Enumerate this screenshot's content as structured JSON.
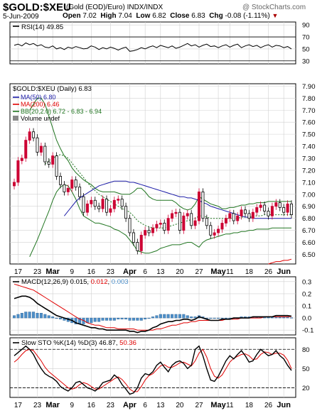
{
  "header": {
    "symbol": "$GOLD:$XEU",
    "description": "(Gold (EOD)/Euro) INDX/INDX",
    "watermark": "@ StockCharts.com",
    "date": "5-Jun-2009",
    "open_label": "Open",
    "open": "7.02",
    "high_label": "High",
    "high": "7.04",
    "low_label": "Low",
    "low": "6.82",
    "close_label": "Close",
    "close": "6.83",
    "chg_label": "Chg",
    "chg": "-0.08 (-1.11%)",
    "chg_arrow": "▼"
  },
  "colors": {
    "up": "#cc0033",
    "down": "#000000",
    "ma50": "#1a1aa6",
    "ma200": "#e00000",
    "bb": "#207520",
    "hist": "#4d8fc9",
    "grid": "#d0d0d0"
  },
  "x_axis_labels": [
    {
      "i": 1,
      "t": "17"
    },
    {
      "i": 6,
      "t": "23"
    },
    {
      "i": 10,
      "t": "Mar"
    },
    {
      "i": 15,
      "t": "9"
    },
    {
      "i": 20,
      "t": "16"
    },
    {
      "i": 25,
      "t": "23"
    },
    {
      "i": 30,
      "t": "Apr"
    },
    {
      "i": 34,
      "t": "6"
    },
    {
      "i": 38,
      "t": "13"
    },
    {
      "i": 43,
      "t": "20"
    },
    {
      "i": 48,
      "t": "27"
    },
    {
      "i": 53,
      "t": "May"
    },
    {
      "i": 56,
      "t": "11"
    },
    {
      "i": 61,
      "t": "18"
    },
    {
      "i": 66,
      "t": "26"
    },
    {
      "i": 70,
      "t": "Jun"
    }
  ],
  "chart_data": [
    {
      "type": "line",
      "panel": "RSI",
      "label": "RSI(14) 49.85",
      "y_ticks": [
        30,
        50,
        70,
        90
      ],
      "ylim": [
        25,
        95
      ],
      "reference_lines": [
        30,
        70
      ],
      "values": [
        56,
        58,
        55,
        60,
        57,
        59,
        55,
        57,
        53,
        52,
        55,
        50,
        52,
        49,
        53,
        51,
        54,
        52,
        50,
        51,
        55,
        53,
        49,
        52,
        50,
        53,
        51,
        48,
        51,
        53,
        46,
        47,
        49,
        52,
        50,
        53,
        55,
        52,
        56,
        54,
        52,
        55,
        51,
        53,
        56,
        59,
        55,
        57,
        53,
        56,
        58,
        54,
        55,
        52,
        55,
        57,
        53,
        56,
        58,
        52,
        55,
        57,
        54,
        56,
        52,
        55,
        57,
        53,
        56,
        55,
        52,
        54,
        50
      ]
    },
    {
      "type": "candlestick",
      "panel": "Price",
      "label": "$GOLD:$XEU (Daily) 6.83",
      "y_ticks": [
        6.5,
        6.6,
        6.7,
        6.8,
        6.9,
        7.0,
        7.1,
        7.2,
        7.3,
        7.4,
        7.5,
        7.6,
        7.7,
        7.8,
        7.9
      ],
      "ylim": [
        6.42,
        7.92
      ],
      "legend": [
        "MA(50) 6.80",
        "MA(200) 6.46",
        "BB(20,2.0) 6.72 - 6.83 - 6.94",
        "Volume undef"
      ],
      "close": [
        7.1,
        7.28,
        7.3,
        7.45,
        7.52,
        7.47,
        7.35,
        7.4,
        7.27,
        7.25,
        7.32,
        7.15,
        7.08,
        7.02,
        7.05,
        7.12,
        7.06,
        6.98,
        6.85,
        6.92,
        6.95,
        6.9,
        6.88,
        6.96,
        6.85,
        6.88,
        6.95,
        6.96,
        6.9,
        6.8,
        6.68,
        6.6,
        6.53,
        6.66,
        6.7,
        6.68,
        6.72,
        6.75,
        6.76,
        6.7,
        6.8,
        6.84,
        6.85,
        6.7,
        6.82,
        6.84,
        6.74,
        6.78,
        7.02,
        6.8,
        6.74,
        6.66,
        6.68,
        6.71,
        6.76,
        6.8,
        6.84,
        6.78,
        6.82,
        6.87,
        6.84,
        6.8,
        6.85,
        6.89,
        6.91,
        6.86,
        6.82,
        6.9,
        6.93,
        6.89,
        6.85,
        6.92,
        6.83
      ],
      "ma50": [
        null,
        null,
        null,
        null,
        null,
        null,
        null,
        null,
        null,
        null,
        null,
        null,
        null,
        6.82,
        6.86,
        6.9,
        6.94,
        6.97,
        6.99,
        7.01,
        7.03,
        7.05,
        7.07,
        7.08,
        7.09,
        7.1,
        7.11,
        7.11,
        7.11,
        7.11,
        7.1,
        7.1,
        7.09,
        7.08,
        7.07,
        7.06,
        7.05,
        7.04,
        7.03,
        7.02,
        7.01,
        7.0,
        6.99,
        6.98,
        6.98,
        6.97,
        6.97,
        6.96,
        6.95,
        6.93,
        6.92,
        6.9,
        6.89,
        6.88,
        6.87,
        6.86,
        6.85,
        6.84,
        6.83,
        6.82,
        6.81,
        6.81,
        6.8,
        6.8,
        6.8,
        6.8,
        6.8,
        6.8,
        6.8,
        6.8,
        6.8,
        6.8,
        6.8
      ],
      "ma200": [
        null,
        null,
        null,
        null,
        null,
        null,
        null,
        null,
        null,
        null,
        null,
        null,
        null,
        null,
        null,
        null,
        null,
        null,
        null,
        null,
        null,
        null,
        null,
        null,
        null,
        null,
        null,
        null,
        null,
        null,
        null,
        null,
        null,
        null,
        null,
        null,
        null,
        null,
        null,
        null,
        null,
        null,
        null,
        null,
        null,
        null,
        null,
        null,
        null,
        null,
        null,
        null,
        null,
        null,
        null,
        null,
        null,
        null,
        null,
        null,
        null,
        null,
        null,
        null,
        null,
        null,
        6.42,
        6.43,
        6.44,
        6.44,
        6.45,
        6.45,
        6.46
      ],
      "bb_upper": [
        null,
        null,
        null,
        null,
        7.7,
        7.75,
        7.8,
        7.8,
        7.75,
        7.65,
        7.55,
        7.45,
        7.38,
        7.32,
        7.28,
        7.22,
        7.18,
        7.15,
        7.12,
        7.1,
        7.08,
        7.05,
        7.03,
        7.02,
        7.02,
        7.02,
        7.02,
        7.01,
        7.0,
        7.0,
        7.0,
        7.02,
        7.05,
        7.05,
        7.02,
        6.98,
        6.96,
        6.95,
        6.95,
        6.95,
        6.95,
        6.95,
        6.93,
        6.9,
        6.88,
        6.87,
        6.88,
        6.92,
        6.98,
        6.96,
        6.94,
        6.92,
        6.91,
        6.9,
        6.88,
        6.88,
        6.89,
        6.89,
        6.9,
        6.91,
        6.91,
        6.92,
        6.92,
        6.93,
        6.93,
        6.93,
        6.94,
        6.94,
        6.94,
        6.94,
        6.94,
        6.94,
        6.94
      ],
      "bb_mid": [
        null,
        null,
        null,
        null,
        null,
        null,
        null,
        null,
        7.25,
        7.28,
        7.3,
        7.32,
        7.33,
        7.32,
        7.3,
        7.26,
        7.22,
        7.18,
        7.14,
        7.1,
        7.06,
        7.03,
        7.0,
        6.98,
        6.96,
        6.94,
        6.92,
        6.9,
        6.88,
        6.87,
        6.85,
        6.82,
        6.78,
        6.76,
        6.74,
        6.73,
        6.72,
        6.72,
        6.72,
        6.72,
        6.73,
        6.74,
        6.75,
        6.76,
        6.77,
        6.78,
        6.79,
        6.8,
        6.82,
        6.82,
        6.81,
        6.8,
        6.8,
        6.8,
        6.8,
        6.8,
        6.8,
        6.8,
        6.8,
        6.81,
        6.81,
        6.81,
        6.82,
        6.82,
        6.82,
        6.83,
        6.83,
        6.83,
        6.83,
        6.83,
        6.83,
        6.83,
        6.83
      ],
      "bb_lower": [
        null,
        null,
        null,
        null,
        6.48,
        6.55,
        6.62,
        6.7,
        6.78,
        6.86,
        6.95,
        7.02,
        7.06,
        7.08,
        7.07,
        7.02,
        6.96,
        6.88,
        6.82,
        6.8,
        6.78,
        6.76,
        6.76,
        6.75,
        6.74,
        6.73,
        6.71,
        6.7,
        6.68,
        6.66,
        6.62,
        6.58,
        6.53,
        6.52,
        6.51,
        6.51,
        6.52,
        6.53,
        6.55,
        6.56,
        6.57,
        6.58,
        6.58,
        6.58,
        6.59,
        6.6,
        6.6,
        6.58,
        6.56,
        6.6,
        6.62,
        6.63,
        6.64,
        6.65,
        6.66,
        6.67,
        6.67,
        6.68,
        6.68,
        6.69,
        6.69,
        6.7,
        6.7,
        6.71,
        6.71,
        6.71,
        6.71,
        6.72,
        6.72,
        6.72,
        6.72,
        6.72,
        6.72
      ]
    },
    {
      "type": "line",
      "panel": "MACD",
      "label_prefix": "MACD(12,26,9)",
      "label_macd": "0.015",
      "label_signal": "0.012",
      "label_hist": "0.003",
      "y_ticks": [
        -0.1,
        0.0,
        0.1,
        0.2,
        0.3
      ],
      "ylim": [
        -0.14,
        0.34
      ],
      "macd": [
        0.16,
        0.17,
        0.18,
        0.18,
        0.17,
        0.15,
        0.12,
        0.1,
        0.08,
        0.06,
        0.04,
        0.02,
        0.01,
        0.0,
        -0.01,
        -0.02,
        -0.04,
        -0.05,
        -0.06,
        -0.07,
        -0.08,
        -0.08,
        -0.09,
        -0.09,
        -0.1,
        -0.1,
        -0.1,
        -0.1,
        -0.1,
        -0.1,
        -0.11,
        -0.11,
        -0.12,
        -0.11,
        -0.11,
        -0.1,
        -0.08,
        -0.07,
        -0.05,
        -0.04,
        -0.03,
        -0.03,
        -0.02,
        -0.02,
        -0.01,
        -0.01,
        -0.02,
        -0.01,
        0.01,
        0.0,
        -0.01,
        -0.02,
        -0.02,
        -0.02,
        -0.01,
        -0.01,
        -0.01,
        0.0,
        0.0,
        0.0,
        0.0,
        0.0,
        0.01,
        0.01,
        0.01,
        0.01,
        0.01,
        0.01,
        0.02,
        0.02,
        0.02,
        0.02,
        0.015
      ],
      "signal": [
        0.28,
        0.27,
        0.26,
        0.25,
        0.24,
        0.23,
        0.21,
        0.19,
        0.17,
        0.15,
        0.13,
        0.11,
        0.09,
        0.07,
        0.05,
        0.03,
        0.01,
        -0.01,
        -0.02,
        -0.04,
        -0.05,
        -0.06,
        -0.06,
        -0.07,
        -0.08,
        -0.08,
        -0.08,
        -0.09,
        -0.09,
        -0.09,
        -0.09,
        -0.09,
        -0.1,
        -0.1,
        -0.1,
        -0.1,
        -0.1,
        -0.09,
        -0.09,
        -0.08,
        -0.07,
        -0.06,
        -0.06,
        -0.05,
        -0.04,
        -0.04,
        -0.03,
        -0.03,
        -0.02,
        -0.02,
        -0.02,
        -0.02,
        -0.02,
        -0.02,
        -0.02,
        -0.01,
        -0.01,
        -0.01,
        -0.01,
        0.0,
        0.0,
        0.0,
        0.0,
        0.0,
        0.0,
        0.01,
        0.01,
        0.01,
        0.01,
        0.01,
        0.01,
        0.01,
        0.012
      ],
      "hist": [
        0.02,
        0.03,
        0.04,
        0.05,
        0.05,
        0.05,
        0.04,
        0.04,
        0.03,
        0.02,
        0.01,
        0.0,
        -0.01,
        -0.02,
        -0.03,
        -0.04,
        -0.05,
        -0.05,
        -0.05,
        -0.04,
        -0.04,
        -0.03,
        -0.03,
        -0.02,
        -0.02,
        -0.02,
        -0.02,
        -0.01,
        -0.01,
        -0.01,
        -0.02,
        -0.02,
        -0.02,
        -0.02,
        -0.01,
        0.0,
        0.01,
        0.02,
        0.03,
        0.03,
        0.03,
        0.03,
        0.03,
        0.03,
        0.03,
        0.02,
        0.01,
        0.01,
        0.02,
        0.01,
        0.0,
        0.0,
        0.0,
        0.0,
        0.0,
        0.0,
        0.0,
        0.0,
        0.0,
        0.01,
        0.01,
        0.01,
        0.01,
        0.01,
        0.01,
        0.01,
        0.01,
        0.01,
        0.01,
        0.01,
        0.01,
        0.01,
        0.003
      ]
    },
    {
      "type": "line",
      "panel": "Stochastic",
      "label_prefix": "Slow STO %K(14) %D(3)",
      "label_k": "46.87",
      "label_d": "50.36",
      "y_ticks": [
        20,
        50,
        80
      ],
      "ylim": [
        5,
        98
      ],
      "reference_lines": [
        20,
        80
      ],
      "k": [
        70,
        75,
        80,
        85,
        80,
        72,
        60,
        50,
        42,
        38,
        35,
        30,
        22,
        18,
        15,
        20,
        28,
        30,
        25,
        20,
        18,
        15,
        20,
        28,
        30,
        32,
        40,
        35,
        25,
        18,
        10,
        12,
        20,
        35,
        42,
        40,
        45,
        55,
        60,
        52,
        45,
        55,
        60,
        62,
        58,
        50,
        55,
        80,
        85,
        70,
        50,
        32,
        30,
        38,
        50,
        62,
        70,
        65,
        72,
        78,
        70,
        60,
        62,
        72,
        80,
        75,
        70,
        72,
        78,
        70,
        65,
        55,
        47
      ],
      "d": [
        60,
        65,
        72,
        78,
        80,
        78,
        70,
        62,
        52,
        45,
        40,
        35,
        30,
        25,
        20,
        18,
        20,
        25,
        28,
        26,
        22,
        18,
        18,
        22,
        26,
        30,
        34,
        37,
        33,
        26,
        18,
        14,
        14,
        22,
        32,
        39,
        42,
        48,
        54,
        56,
        52,
        52,
        55,
        59,
        60,
        57,
        54,
        62,
        74,
        80,
        68,
        50,
        38,
        35,
        40,
        50,
        60,
        66,
        69,
        72,
        73,
        70,
        64,
        65,
        72,
        76,
        75,
        72,
        74,
        74,
        71,
        63,
        50
      ]
    }
  ]
}
